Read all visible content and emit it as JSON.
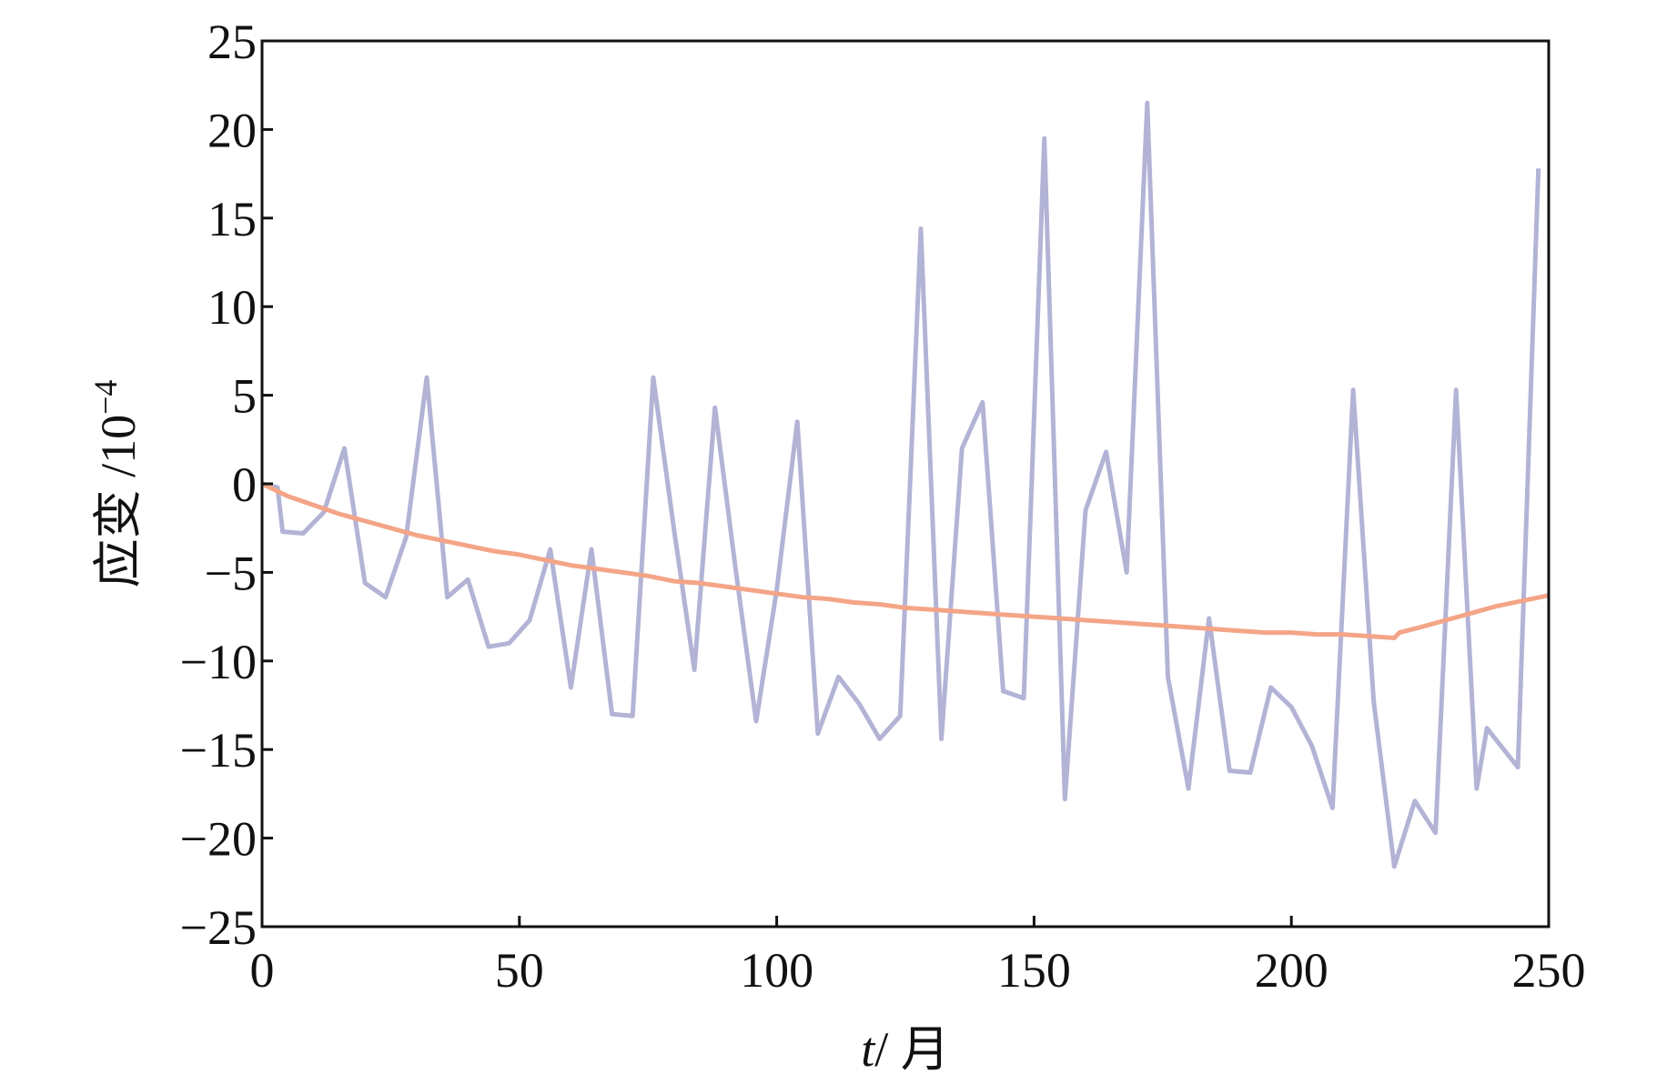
{
  "chart_data": {
    "type": "line",
    "xlabel": {
      "var": "t",
      "rest": "/ 月"
    },
    "ylabel": {
      "text": "应变 /10",
      "exp": "−4"
    },
    "xlim": [
      0,
      250
    ],
    "ylim": [
      -25,
      25
    ],
    "xticks": [
      0,
      50,
      100,
      150,
      200,
      250
    ],
    "xtick_labels": [
      "0",
      "50",
      "100",
      "150",
      "200",
      "250"
    ],
    "yticks": [
      -25,
      -20,
      -15,
      -10,
      -5,
      0,
      5,
      10,
      15,
      20,
      25
    ],
    "ytick_labels": [
      "−25",
      "−20",
      "−15",
      "−10",
      "−5",
      "0",
      "5",
      "10",
      "15",
      "20",
      "25"
    ],
    "grid": false,
    "legend": false,
    "series": [
      {
        "color": "#b3b3d6",
        "x": [
          0,
          3,
          4,
          8,
          12,
          16,
          20,
          24,
          28,
          32,
          36,
          40,
          44,
          48,
          52,
          56,
          60,
          64,
          68,
          72,
          76,
          80,
          84,
          88,
          92,
          96,
          100,
          104,
          108,
          112,
          116,
          120,
          124,
          128,
          132,
          136,
          140,
          144,
          148,
          152,
          156,
          160,
          164,
          168,
          172,
          176,
          180,
          184,
          188,
          192,
          196,
          200,
          204,
          208,
          212,
          216,
          220,
          224,
          228,
          232,
          236,
          238,
          244,
          248
        ],
        "y": [
          0,
          -0.2,
          -2.7,
          -2.8,
          -1.6,
          2.0,
          -5.6,
          -6.4,
          -3.0,
          6.0,
          -6.4,
          -5.4,
          -9.2,
          -9.0,
          -7.7,
          -3.7,
          -11.5,
          -3.7,
          -13.0,
          -13.1,
          6.0,
          -2.5,
          -10.5,
          4.3,
          -4.8,
          -13.4,
          -6.0,
          3.5,
          -14.1,
          -10.9,
          -12.4,
          -14.4,
          -13.1,
          14.4,
          -14.4,
          2.0,
          4.6,
          -11.7,
          -12.1,
          19.5,
          -17.8,
          -1.5,
          1.8,
          -5.0,
          21.5,
          -10.9,
          -17.2,
          -7.6,
          -16.2,
          -16.3,
          -11.5,
          -12.6,
          -14.8,
          -18.3,
          5.3,
          -12.3,
          -21.6,
          -17.9,
          -19.7,
          5.3,
          -17.2,
          -13.8,
          -16.0,
          17.8
        ]
      },
      {
        "color": "#f4a587",
        "x": [
          0,
          5,
          10,
          15,
          20,
          25,
          30,
          35,
          40,
          45,
          50,
          55,
          60,
          65,
          70,
          75,
          80,
          85,
          90,
          95,
          100,
          105,
          110,
          115,
          120,
          125,
          130,
          135,
          140,
          145,
          150,
          155,
          160,
          165,
          170,
          175,
          180,
          185,
          190,
          195,
          200,
          205,
          210,
          215,
          220,
          221,
          225,
          230,
          235,
          240,
          245,
          250
        ],
        "y": [
          0,
          -0.7,
          -1.2,
          -1.7,
          -2.1,
          -2.5,
          -2.9,
          -3.2,
          -3.5,
          -3.8,
          -4.0,
          -4.3,
          -4.6,
          -4.8,
          -5.0,
          -5.2,
          -5.5,
          -5.6,
          -5.8,
          -6.0,
          -6.2,
          -6.4,
          -6.5,
          -6.7,
          -6.8,
          -7.0,
          -7.1,
          -7.2,
          -7.3,
          -7.4,
          -7.5,
          -7.6,
          -7.7,
          -7.8,
          -7.9,
          -8.0,
          -8.1,
          -8.2,
          -8.3,
          -8.4,
          -8.4,
          -8.5,
          -8.5,
          -8.6,
          -8.7,
          -8.4,
          -8.1,
          -7.7,
          -7.3,
          -6.9,
          -6.6,
          -6.3
        ]
      }
    ]
  }
}
